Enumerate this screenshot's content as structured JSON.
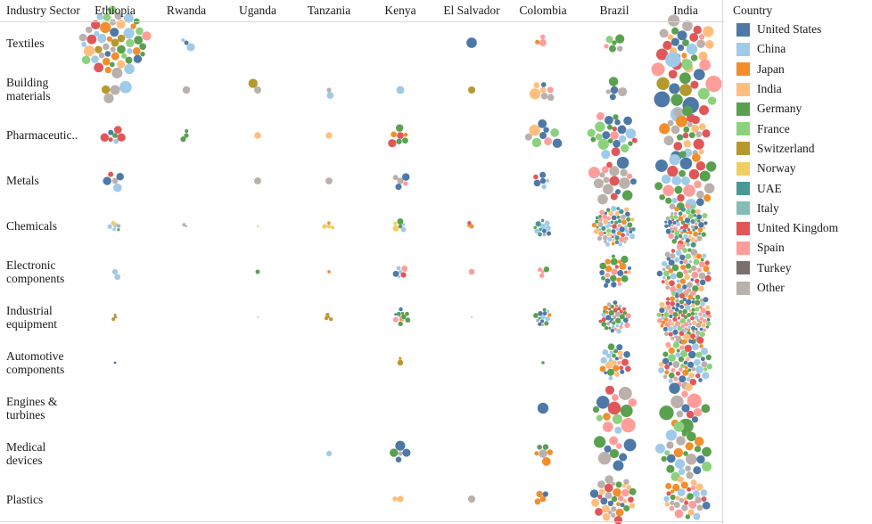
{
  "chart_data": {
    "type": "bubble-matrix",
    "row_header": "Industry Sector",
    "columns": [
      "Ethiopia",
      "Rwanda",
      "Uganda",
      "Tanzania",
      "Kenya",
      "El Salvador",
      "Colombia",
      "Brazil",
      "India"
    ],
    "rows": [
      "Textiles",
      "Building\nmaterials",
      "Pharmaceutic..",
      "Metals",
      "Chemicals",
      "Electronic\ncomponents",
      "Industrial\nequipment",
      "Automotive\ncomponents",
      "Engines &\nturbines",
      "Medical\ndevices",
      "Plastics"
    ],
    "legend_title": "Country",
    "legend": [
      {
        "name": "United States",
        "color": "#4e79a7"
      },
      {
        "name": "China",
        "color": "#a0cbe8"
      },
      {
        "name": "Japan",
        "color": "#f28e2b"
      },
      {
        "name": "India",
        "color": "#ffbe7d"
      },
      {
        "name": "Germany",
        "color": "#59a14f"
      },
      {
        "name": "France",
        "color": "#8cd17d"
      },
      {
        "name": "Switzerland",
        "color": "#b6992d"
      },
      {
        "name": "Norway",
        "color": "#f1ce63"
      },
      {
        "name": "UAE",
        "color": "#499894"
      },
      {
        "name": "Italy",
        "color": "#86bcb6"
      },
      {
        "name": "United Kingdom",
        "color": "#e15759"
      },
      {
        "name": "Spain",
        "color": "#ff9d9a"
      },
      {
        "name": "Turkey",
        "color": "#79706e"
      },
      {
        "name": "Other",
        "color": "#bab0ac"
      }
    ],
    "legend_placement": "right",
    "cells": [
      {
        "row": 0,
        "col": 0,
        "count": 50,
        "size": 4.5,
        "mix": [
          0,
          1,
          2,
          3,
          4,
          5,
          6,
          10,
          11,
          13,
          13,
          1
        ]
      },
      {
        "row": 0,
        "col": 1,
        "count": 3,
        "size": 3.5,
        "mix": [
          1,
          2,
          0
        ]
      },
      {
        "row": 0,
        "col": 5,
        "count": 1,
        "size": 5,
        "mix": [
          0
        ]
      },
      {
        "row": 0,
        "col": 6,
        "count": 3,
        "size": 3.5,
        "mix": [
          2,
          5,
          11
        ]
      },
      {
        "row": 0,
        "col": 7,
        "count": 6,
        "size": 4,
        "mix": [
          4,
          11,
          13,
          0,
          5
        ]
      },
      {
        "row": 0,
        "col": 8,
        "count": 26,
        "size": 5,
        "mix": [
          0,
          1,
          4,
          10,
          11,
          13,
          2,
          3
        ]
      },
      {
        "row": 1,
        "col": 0,
        "count": 4,
        "size": 5,
        "mix": [
          6,
          13,
          1,
          13
        ]
      },
      {
        "row": 1,
        "col": 1,
        "count": 1,
        "size": 3.5,
        "mix": [
          13
        ]
      },
      {
        "row": 1,
        "col": 2,
        "count": 2,
        "size": 4,
        "mix": [
          13,
          6
        ]
      },
      {
        "row": 1,
        "col": 3,
        "count": 2,
        "size": 4,
        "mix": [
          13,
          1
        ]
      },
      {
        "row": 1,
        "col": 4,
        "count": 1,
        "size": 4,
        "mix": [
          1
        ]
      },
      {
        "row": 1,
        "col": 5,
        "count": 1,
        "size": 3.5,
        "mix": [
          6
        ]
      },
      {
        "row": 1,
        "col": 6,
        "count": 7,
        "size": 4.5,
        "mix": [
          13,
          2,
          0,
          3,
          11,
          13
        ]
      },
      {
        "row": 1,
        "col": 7,
        "count": 5,
        "size": 4,
        "mix": [
          13,
          0,
          4,
          10
        ]
      },
      {
        "row": 1,
        "col": 8,
        "count": 20,
        "size": 7,
        "mix": [
          0,
          5,
          6,
          1,
          4,
          10,
          13,
          11
        ]
      },
      {
        "row": 2,
        "col": 0,
        "count": 7,
        "size": 3.5,
        "mix": [
          0,
          4,
          1,
          10,
          3
        ]
      },
      {
        "row": 2,
        "col": 1,
        "count": 3,
        "size": 3,
        "mix": [
          10,
          4,
          5
        ]
      },
      {
        "row": 2,
        "col": 2,
        "count": 1,
        "size": 3,
        "mix": [
          3
        ]
      },
      {
        "row": 2,
        "col": 3,
        "count": 1,
        "size": 3.5,
        "mix": [
          3
        ]
      },
      {
        "row": 2,
        "col": 4,
        "count": 7,
        "size": 3.5,
        "mix": [
          2,
          10,
          0,
          3,
          4
        ]
      },
      {
        "row": 2,
        "col": 6,
        "count": 9,
        "size": 5,
        "mix": [
          5,
          0,
          13,
          3,
          11
        ]
      },
      {
        "row": 2,
        "col": 7,
        "count": 24,
        "size": 4.5,
        "mix": [
          0,
          4,
          10,
          11,
          1,
          5
        ]
      },
      {
        "row": 2,
        "col": 8,
        "count": 24,
        "size": 5,
        "mix": [
          0,
          10,
          4,
          13,
          2,
          3,
          1
        ]
      },
      {
        "row": 3,
        "col": 0,
        "count": 5,
        "size": 3.5,
        "mix": [
          0,
          10,
          13,
          1
        ]
      },
      {
        "row": 3,
        "col": 2,
        "count": 1,
        "size": 3,
        "mix": [
          13
        ]
      },
      {
        "row": 3,
        "col": 3,
        "count": 1,
        "size": 3,
        "mix": [
          13
        ]
      },
      {
        "row": 3,
        "col": 4,
        "count": 5,
        "size": 4,
        "mix": [
          1,
          11,
          0,
          13
        ]
      },
      {
        "row": 3,
        "col": 6,
        "count": 6,
        "size": 3.5,
        "mix": [
          0,
          4,
          10,
          1
        ]
      },
      {
        "row": 3,
        "col": 7,
        "count": 18,
        "size": 5,
        "mix": [
          13,
          0,
          10,
          11,
          4,
          13
        ]
      },
      {
        "row": 3,
        "col": 8,
        "count": 30,
        "size": 5,
        "mix": [
          0,
          4,
          10,
          2,
          13,
          1,
          11
        ]
      },
      {
        "row": 4,
        "col": 0,
        "count": 7,
        "size": 2,
        "mix": [
          13,
          4,
          1,
          7
        ]
      },
      {
        "row": 4,
        "col": 1,
        "count": 2,
        "size": 1.8,
        "mix": [
          13,
          13
        ]
      },
      {
        "row": 4,
        "col": 2,
        "count": 1,
        "size": 1.5,
        "mix": [
          7
        ]
      },
      {
        "row": 4,
        "col": 3,
        "count": 4,
        "size": 2,
        "mix": [
          6,
          2,
          7
        ]
      },
      {
        "row": 4,
        "col": 4,
        "count": 6,
        "size": 2.5,
        "mix": [
          7,
          0,
          1,
          4
        ]
      },
      {
        "row": 4,
        "col": 5,
        "count": 3,
        "size": 2,
        "mix": [
          2,
          10
        ]
      },
      {
        "row": 4,
        "col": 6,
        "count": 12,
        "size": 2.5,
        "mix": [
          1,
          4,
          0,
          13,
          8
        ]
      },
      {
        "row": 4,
        "col": 7,
        "count": 70,
        "size": 2.3,
        "mix": [
          0,
          1,
          4,
          10,
          11,
          13,
          2,
          3,
          5,
          8
        ]
      },
      {
        "row": 4,
        "col": 8,
        "count": 75,
        "size": 2.3,
        "mix": [
          0,
          1,
          4,
          10,
          11,
          13,
          2,
          3,
          5,
          8
        ]
      },
      {
        "row": 5,
        "col": 0,
        "count": 2,
        "size": 2.5,
        "mix": [
          1
        ]
      },
      {
        "row": 5,
        "col": 2,
        "count": 1,
        "size": 3,
        "mix": [
          4
        ]
      },
      {
        "row": 5,
        "col": 3,
        "count": 1,
        "size": 3,
        "mix": [
          2
        ]
      },
      {
        "row": 5,
        "col": 4,
        "count": 6,
        "size": 2.5,
        "mix": [
          0,
          11,
          10,
          1
        ]
      },
      {
        "row": 5,
        "col": 5,
        "count": 1,
        "size": 2.5,
        "mix": [
          11
        ]
      },
      {
        "row": 5,
        "col": 6,
        "count": 4,
        "size": 2.5,
        "mix": [
          11,
          3,
          4
        ]
      },
      {
        "row": 5,
        "col": 7,
        "count": 24,
        "size": 3,
        "mix": [
          0,
          4,
          10,
          11,
          2,
          3
        ]
      },
      {
        "row": 5,
        "col": 8,
        "count": 70,
        "size": 2.8,
        "mix": [
          0,
          1,
          4,
          10,
          11,
          13,
          2,
          3,
          5
        ]
      },
      {
        "row": 6,
        "col": 0,
        "count": 4,
        "size": 1.5,
        "mix": [
          6,
          4,
          0
        ]
      },
      {
        "row": 6,
        "col": 2,
        "count": 1,
        "size": 1.2,
        "mix": [
          13
        ]
      },
      {
        "row": 6,
        "col": 3,
        "count": 4,
        "size": 1.6,
        "mix": [
          2,
          7,
          6
        ]
      },
      {
        "row": 6,
        "col": 4,
        "count": 12,
        "size": 2.2,
        "mix": [
          4,
          0,
          13,
          2,
          11
        ]
      },
      {
        "row": 6,
        "col": 5,
        "count": 1,
        "size": 1.2,
        "mix": [
          13
        ]
      },
      {
        "row": 6,
        "col": 6,
        "count": 14,
        "size": 2.3,
        "mix": [
          13,
          0,
          1,
          4,
          2
        ]
      },
      {
        "row": 6,
        "col": 7,
        "count": 40,
        "size": 2.3,
        "mix": [
          0,
          1,
          4,
          10,
          11,
          13,
          2
        ]
      },
      {
        "row": 6,
        "col": 8,
        "count": 120,
        "size": 2.3,
        "mix": [
          0,
          1,
          4,
          10,
          11,
          13,
          2,
          3,
          5
        ]
      },
      {
        "row": 7,
        "col": 0,
        "count": 1,
        "size": 2,
        "mix": [
          0
        ]
      },
      {
        "row": 7,
        "col": 4,
        "count": 2,
        "size": 2.5,
        "mix": [
          6,
          2
        ]
      },
      {
        "row": 7,
        "col": 6,
        "count": 1,
        "size": 2,
        "mix": [
          4
        ]
      },
      {
        "row": 7,
        "col": 7,
        "count": 26,
        "size": 3,
        "mix": [
          4,
          2,
          0,
          11,
          10,
          3,
          1
        ]
      },
      {
        "row": 7,
        "col": 8,
        "count": 60,
        "size": 3.2,
        "mix": [
          0,
          4,
          2,
          10,
          11,
          13,
          1,
          3,
          5
        ]
      },
      {
        "row": 8,
        "col": 6,
        "count": 1,
        "size": 5,
        "mix": [
          0
        ]
      },
      {
        "row": 8,
        "col": 7,
        "count": 14,
        "size": 6,
        "mix": [
          0,
          1,
          10,
          11,
          5,
          13,
          4,
          2
        ]
      },
      {
        "row": 8,
        "col": 8,
        "count": 14,
        "size": 6,
        "mix": [
          13,
          10,
          4,
          0,
          11,
          3,
          2
        ]
      },
      {
        "row": 9,
        "col": 3,
        "count": 1,
        "size": 3.5,
        "mix": [
          1
        ]
      },
      {
        "row": 9,
        "col": 4,
        "count": 5,
        "size": 4,
        "mix": [
          0,
          4,
          13
        ]
      },
      {
        "row": 9,
        "col": 6,
        "count": 6,
        "size": 3.5,
        "mix": [
          2,
          0,
          4,
          13
        ]
      },
      {
        "row": 9,
        "col": 7,
        "count": 9,
        "size": 5.5,
        "mix": [
          0,
          4,
          11,
          13
        ]
      },
      {
        "row": 9,
        "col": 8,
        "count": 26,
        "size": 4.5,
        "mix": [
          0,
          4,
          2,
          5,
          13,
          1
        ]
      },
      {
        "row": 10,
        "col": 4,
        "count": 2,
        "size": 3,
        "mix": [
          4,
          3
        ]
      },
      {
        "row": 10,
        "col": 5,
        "count": 1,
        "size": 3,
        "mix": [
          13
        ]
      },
      {
        "row": 10,
        "col": 6,
        "count": 4,
        "size": 3,
        "mix": [
          13,
          2,
          0
        ]
      },
      {
        "row": 10,
        "col": 7,
        "count": 34,
        "size": 3.5,
        "mix": [
          13,
          4,
          0,
          10,
          11,
          2,
          3
        ]
      },
      {
        "row": 10,
        "col": 8,
        "count": 34,
        "size": 3.5,
        "mix": [
          13,
          0,
          4,
          10,
          11,
          2,
          3,
          1
        ]
      }
    ]
  }
}
